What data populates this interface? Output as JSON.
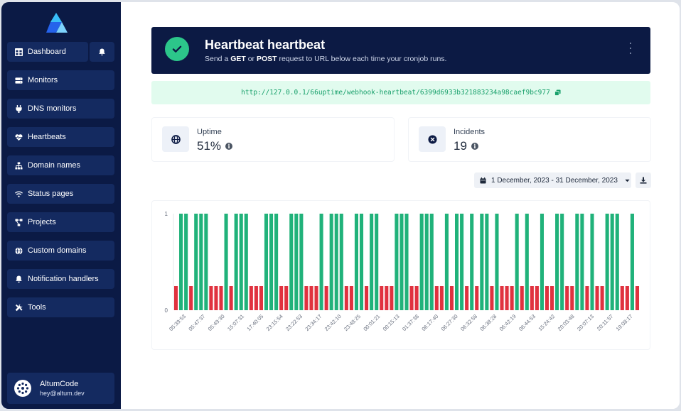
{
  "sidebar": {
    "dashboard": "Dashboard",
    "items": [
      {
        "label": "Monitors",
        "icon": "server-icon"
      },
      {
        "label": "DNS monitors",
        "icon": "plug-icon"
      },
      {
        "label": "Heartbeats",
        "icon": "heartbeat-icon"
      },
      {
        "label": "Domain names",
        "icon": "sitemap-icon"
      },
      {
        "label": "Status pages",
        "icon": "wifi-icon"
      },
      {
        "label": "Projects",
        "icon": "project-diagram-icon"
      },
      {
        "label": "Custom domains",
        "icon": "globe-icon"
      },
      {
        "label": "Notification handlers",
        "icon": "bell-icon"
      },
      {
        "label": "Tools",
        "icon": "tools-icon"
      }
    ],
    "user": {
      "name": "AltumCode",
      "email": "hey@altum.dev"
    }
  },
  "header": {
    "title": "Heartbeat heartbeat",
    "sub_pre": "Send a ",
    "sub_get": "GET",
    "sub_mid": " or ",
    "sub_post": "POST",
    "sub_post_text": " request to URL below each time your cronjob runs."
  },
  "url": "http://127.0.0.1/66uptime/webhook-heartbeat/6399d6933b321883234a98caef9bc977",
  "stats": {
    "uptime": {
      "label": "Uptime",
      "value": "51%"
    },
    "incidents": {
      "label": "Incidents",
      "value": "19"
    }
  },
  "date_range": "1 December, 2023 - 31 December, 2023",
  "colors": {
    "up": "#20b27a",
    "down": "#e0323f",
    "sidebar": "#0b1a45"
  },
  "chart_data": {
    "type": "bar",
    "ylim": [
      0,
      1
    ],
    "y_ticks": [
      "0",
      "1"
    ],
    "tick_labels": [
      "05:39:53",
      "05:47:37",
      "05:49:30",
      "15:07:31",
      "17:40:05",
      "23:15:54",
      "23:22:53",
      "23:34:17",
      "23:42:10",
      "23:48:25",
      "00:01:21",
      "00:15:13",
      "01:37:38",
      "06:17:40",
      "06:27:30",
      "06:32:58",
      "06:38:28",
      "06:42:19",
      "06:44:53",
      "15:24:42",
      "20:03:48",
      "20:07:13",
      "20:11:57",
      "19:08:17"
    ],
    "series": [
      {
        "values": [
          0.25,
          1,
          1,
          0.25,
          1,
          1,
          1,
          0.25,
          0.25,
          0.25,
          1,
          0.25,
          1,
          1,
          1,
          0.25,
          0.25,
          0.25,
          1,
          1,
          1,
          0.25,
          0.25,
          1,
          1,
          1,
          0.25,
          0.25,
          0.25,
          1,
          0.25,
          1,
          1,
          1,
          0.25,
          0.25,
          1,
          1,
          0.25,
          1,
          1,
          0.25,
          0.25,
          0.25,
          1,
          1,
          1,
          0.25,
          0.25,
          1,
          1,
          1,
          0.25,
          0.25,
          1,
          0.25,
          1,
          1,
          0.25,
          1,
          0.25,
          1,
          1,
          0.25,
          1,
          0.25,
          0.25,
          0.25,
          1,
          0.25,
          1,
          0.25,
          0.25,
          1,
          0.25,
          0.25,
          1,
          1,
          0.25,
          0.25,
          1,
          1,
          0.25,
          1,
          0.25,
          0.25,
          1,
          1,
          1,
          0.25,
          0.25,
          1,
          0.25
        ]
      }
    ]
  }
}
